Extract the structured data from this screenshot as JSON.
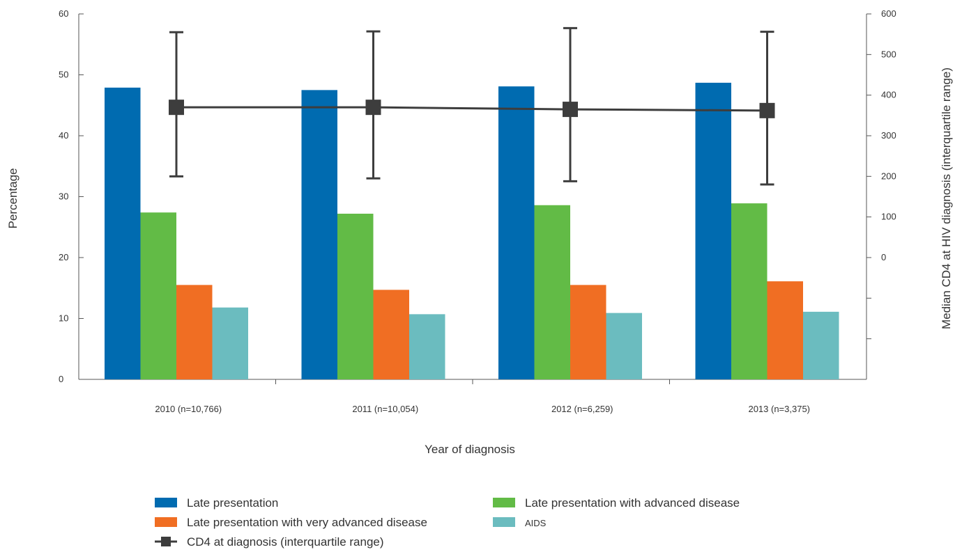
{
  "chart_data": {
    "type": "bar",
    "title": "",
    "xlabel": "Year of diagnosis",
    "ylabel": "Percentage",
    "y2label": "Median CD4 at HIV diagnosis (interquartile range)",
    "ylim": [
      0,
      60
    ],
    "y_ticks": [
      0,
      10,
      20,
      30,
      40,
      50,
      60
    ],
    "y2_ticks": [
      0,
      100,
      200,
      300,
      400,
      500,
      600
    ],
    "y2_unlabeled_ticks": 3,
    "categories": [
      "2010 (n=10,766)",
      "2011 (n=10,054)",
      "2012 (n=6,259)",
      "2013 (n=3,375)"
    ],
    "series": [
      {
        "name": "Late presentation",
        "color": "#006bb0",
        "values": [
          47.9,
          47.5,
          48.1,
          48.7
        ]
      },
      {
        "name": "Late presentation with advanced disease",
        "color": "#62bb46",
        "values": [
          27.4,
          27.2,
          28.6,
          28.9
        ]
      },
      {
        "name": "Late presentation with very advanced disease",
        "color": "#f06e23",
        "values": [
          15.5,
          14.7,
          15.5,
          16.1
        ]
      },
      {
        "name": "AIDS",
        "color": "#6bbcbf",
        "values": [
          11.8,
          10.7,
          10.9,
          11.1
        ]
      }
    ],
    "line_series": {
      "name": "CD4 at diagnosis (interquartile range)",
      "color": "#3d3d3d",
      "axis": "secondary",
      "values": [
        370,
        370,
        365,
        362
      ],
      "lower": [
        200,
        195,
        188,
        180
      ],
      "upper": [
        555,
        557,
        565,
        556
      ]
    },
    "grid": false,
    "legend_position": "bottom"
  }
}
